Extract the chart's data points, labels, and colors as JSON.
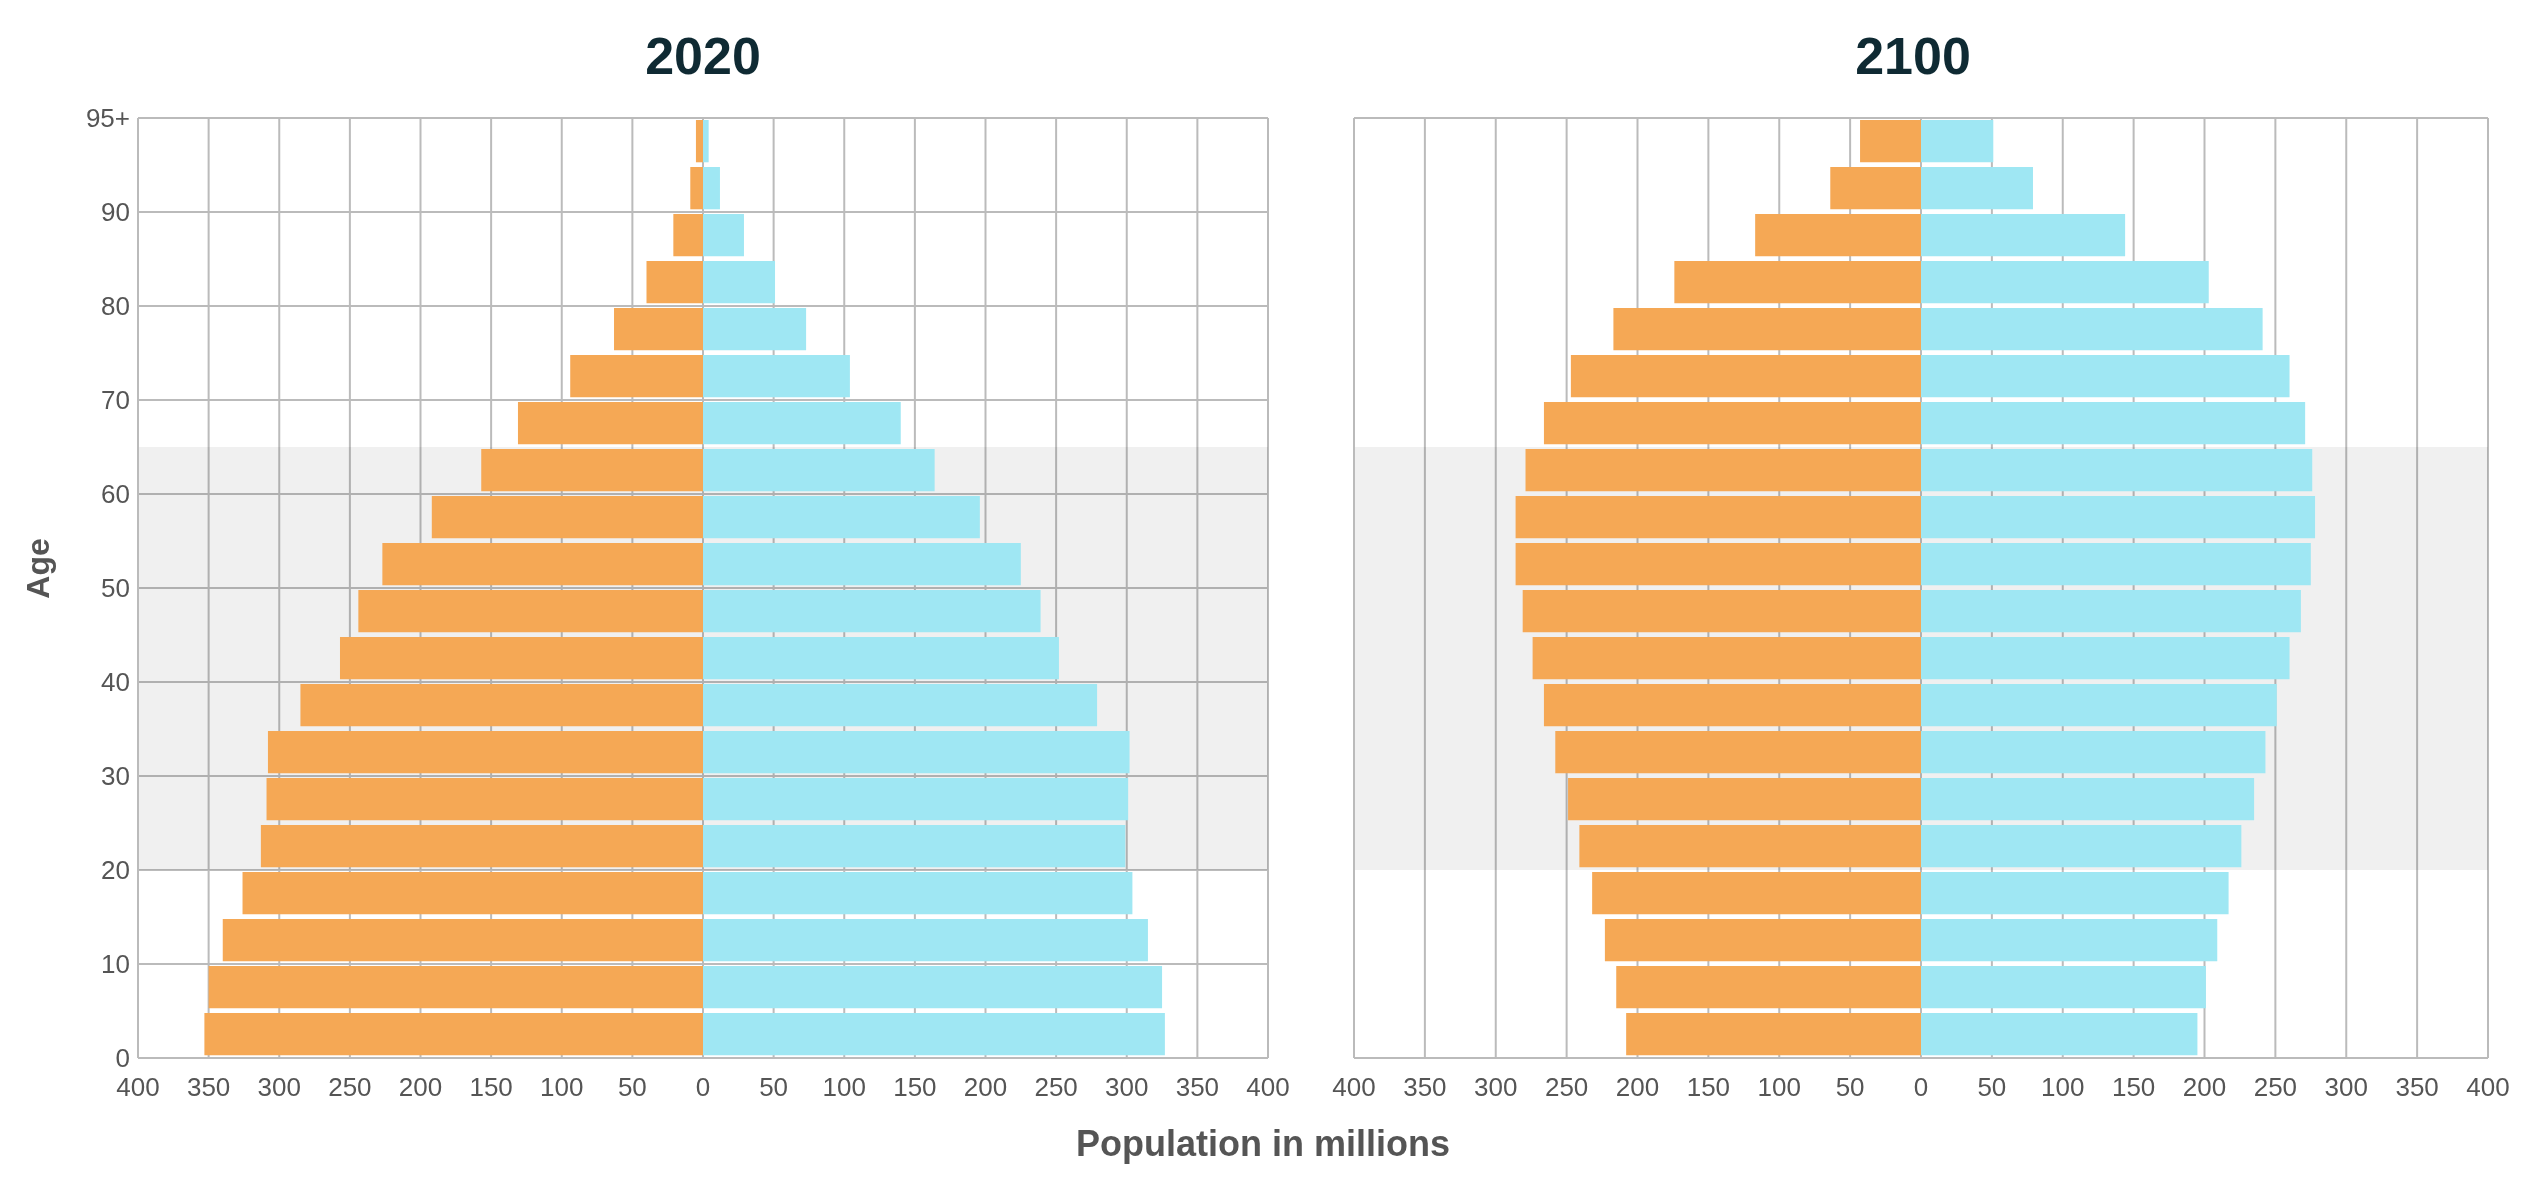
{
  "chart_data": [
    {
      "type": "bar",
      "title": "2020",
      "xlabel": "Population in millions",
      "ylabel": "Age",
      "orientation": "horizontal",
      "stacked": true,
      "grid": true,
      "x": [
        97.5,
        92.5,
        87.5,
        82.5,
        77.5,
        72.5,
        67.5,
        62.5,
        57.5,
        52.5,
        47.5,
        42.5,
        37.5,
        32.5,
        27.5,
        22.5,
        17.5,
        12.5,
        7.5,
        2.5
      ],
      "series": [
        {
          "color": "#f5a855",
          "values": [
            -5,
            -9,
            -21,
            -40,
            -63,
            -94,
            -131,
            -157,
            -192,
            -227,
            -244,
            -257,
            -285,
            -308,
            -309,
            -313,
            -326,
            -340,
            -350,
            -353
          ]
        },
        {
          "color": "#9fe7f3",
          "values": [
            4,
            12,
            29,
            51,
            73,
            104,
            140,
            164,
            196,
            225,
            239,
            252,
            279,
            302,
            301,
            299,
            304,
            315,
            325,
            327
          ]
        }
      ],
      "xlim": [
        -400,
        400
      ],
      "xticks": [
        {
          "value": -400,
          "label": "400"
        },
        {
          "value": -350,
          "label": "350"
        },
        {
          "value": -300,
          "label": "300"
        },
        {
          "value": -250,
          "label": "250"
        },
        {
          "value": -200,
          "label": "200"
        },
        {
          "value": -150,
          "label": "150"
        },
        {
          "value": -100,
          "label": "100"
        },
        {
          "value": -50,
          "label": "50"
        },
        0,
        50,
        100,
        150,
        200,
        250,
        300,
        350,
        400
      ],
      "ylim": [
        0,
        100
      ],
      "yticks": [
        0,
        10,
        20,
        30,
        40,
        50,
        60,
        70,
        80,
        90,
        {
          "value": 100,
          "label": "95+"
        }
      ],
      "bands": [
        {
          "axis": "y",
          "from": 20,
          "to": 65,
          "color": "#000000"
        }
      ]
    },
    {
      "type": "bar",
      "title": "2100",
      "orientation": "horizontal",
      "stacked": true,
      "grid": true,
      "tick_labels": "x",
      "x": [
        97.5,
        92.5,
        87.5,
        82.5,
        77.5,
        72.5,
        67.5,
        62.5,
        57.5,
        52.5,
        47.5,
        42.5,
        37.5,
        32.5,
        27.5,
        22.5,
        17.5,
        12.5,
        7.5,
        2.5
      ],
      "series": [
        {
          "color": "#f5a855",
          "values": [
            -43,
            -64,
            -117,
            -174,
            -217,
            -247,
            -266,
            -279,
            -286,
            -286,
            -281,
            -274,
            -266,
            -258,
            -249,
            -241,
            -232,
            -223,
            -215,
            -208
          ]
        },
        {
          "color": "#9fe7f3",
          "values": [
            51,
            79,
            144,
            203,
            241,
            260,
            271,
            276,
            278,
            275,
            268,
            260,
            251,
            243,
            235,
            226,
            217,
            209,
            201,
            195
          ]
        }
      ],
      "xlim": [
        -400,
        400
      ],
      "xticks": [
        {
          "value": -400,
          "label": "400"
        },
        {
          "value": -350,
          "label": "350"
        },
        {
          "value": -300,
          "label": "300"
        },
        {
          "value": -250,
          "label": "250"
        },
        {
          "value": -200,
          "label": "200"
        },
        {
          "value": -150,
          "label": "150"
        },
        {
          "value": -100,
          "label": "100"
        },
        {
          "value": -50,
          "label": "50"
        },
        0,
        50,
        100,
        150,
        200,
        250,
        300,
        350,
        400
      ],
      "ylim": [
        0,
        100
      ],
      "yticks": [
        0,
        10,
        20,
        30,
        40,
        50,
        60,
        70,
        80,
        90,
        100
      ],
      "bands": [
        {
          "axis": "y",
          "from": 20,
          "to": 65,
          "color": "#000000"
        }
      ]
    }
  ]
}
